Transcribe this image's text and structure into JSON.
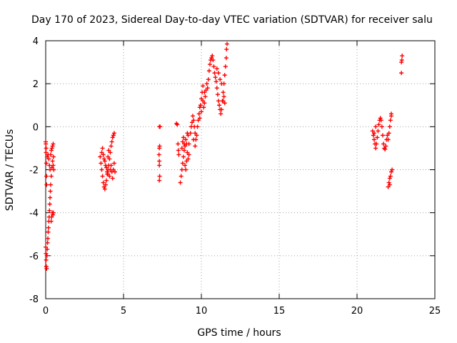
{
  "chart_data": {
    "type": "scatter",
    "title": "Day 170 of 2023, Sidereal Day-to-day VTEC variation (SDTVAR) for receiver salu",
    "xlabel": "GPS time / hours",
    "ylabel": "SDTVAR / TECUs",
    "xlim": [
      0,
      25
    ],
    "ylim": [
      -8,
      4
    ],
    "xticks": [
      0,
      5,
      10,
      15,
      20,
      25
    ],
    "yticks": [
      -8,
      -6,
      -4,
      -2,
      0,
      2,
      4
    ],
    "grid": true,
    "marker": "+",
    "color": "#ff0000",
    "series": [
      {
        "name": "SDTVAR",
        "points": [
          [
            0.0,
            -0.7
          ],
          [
            0.02,
            -1.2
          ],
          [
            0.04,
            -1.7
          ],
          [
            0.05,
            -2.3
          ],
          [
            0.06,
            -2.7
          ],
          [
            0.03,
            -1.0
          ],
          [
            0.01,
            -0.8
          ],
          [
            0.0,
            -5.6
          ],
          [
            0.02,
            -5.9
          ],
          [
            0.03,
            -6.2
          ],
          [
            0.04,
            -6.5
          ],
          [
            0.06,
            -6.6
          ],
          [
            0.08,
            -6.0
          ],
          [
            0.1,
            -5.7
          ],
          [
            0.12,
            -5.4
          ],
          [
            0.14,
            -5.2
          ],
          [
            0.16,
            -4.9
          ],
          [
            0.18,
            -4.7
          ],
          [
            0.2,
            -4.4
          ],
          [
            0.22,
            -4.2
          ],
          [
            0.24,
            -3.9
          ],
          [
            0.26,
            -3.6
          ],
          [
            0.28,
            -3.3
          ],
          [
            0.3,
            -3.0
          ],
          [
            0.32,
            -2.7
          ],
          [
            0.2,
            -1.5
          ],
          [
            0.24,
            -1.8
          ],
          [
            0.28,
            -2.0
          ],
          [
            0.32,
            -1.3
          ],
          [
            0.36,
            -1.1
          ],
          [
            0.4,
            -1.0
          ],
          [
            0.44,
            -0.9
          ],
          [
            0.48,
            -0.8
          ],
          [
            0.35,
            -4.4
          ],
          [
            0.38,
            -4.2
          ],
          [
            0.42,
            -4.0
          ],
          [
            0.46,
            -4.1
          ],
          [
            0.5,
            -4.0
          ],
          [
            0.36,
            -2.3
          ],
          [
            0.4,
            -1.9
          ],
          [
            0.44,
            -1.6
          ],
          [
            0.48,
            -1.8
          ],
          [
            0.52,
            -2.0
          ],
          [
            0.5,
            -1.4
          ],
          [
            0.15,
            -1.3
          ],
          [
            0.1,
            -1.4
          ],
          [
            3.5,
            -1.4
          ],
          [
            3.55,
            -1.7
          ],
          [
            3.6,
            -2.0
          ],
          [
            3.65,
            -2.3
          ],
          [
            3.7,
            -2.6
          ],
          [
            3.75,
            -2.8
          ],
          [
            3.8,
            -2.9
          ],
          [
            3.85,
            -2.7
          ],
          [
            3.9,
            -2.5
          ],
          [
            3.95,
            -2.2
          ],
          [
            4.0,
            -2.0
          ],
          [
            3.6,
            -1.2
          ],
          [
            3.65,
            -1.0
          ],
          [
            3.7,
            -1.3
          ],
          [
            3.75,
            -1.5
          ],
          [
            3.8,
            -1.6
          ],
          [
            3.85,
            -1.8
          ],
          [
            3.9,
            -1.9
          ],
          [
            3.95,
            -2.1
          ],
          [
            4.0,
            -2.2
          ],
          [
            4.05,
            -1.8
          ],
          [
            4.1,
            -1.5
          ],
          [
            4.15,
            -1.2
          ],
          [
            4.2,
            -0.9
          ],
          [
            4.25,
            -0.7
          ],
          [
            4.3,
            -0.5
          ],
          [
            4.35,
            -0.4
          ],
          [
            4.4,
            -0.3
          ],
          [
            4.1,
            -2.3
          ],
          [
            4.15,
            -2.0
          ],
          [
            4.2,
            -1.8
          ],
          [
            4.25,
            -2.1
          ],
          [
            4.3,
            -2.4
          ],
          [
            4.35,
            -2.0
          ],
          [
            4.4,
            -1.7
          ],
          [
            4.45,
            -2.1
          ],
          [
            4.05,
            -1.1
          ],
          [
            4.0,
            -1.4
          ],
          [
            7.3,
            -2.5
          ],
          [
            7.32,
            -2.3
          ],
          [
            7.3,
            -1.8
          ],
          [
            7.3,
            -1.6
          ],
          [
            7.28,
            -1.3
          ],
          [
            7.3,
            -1.0
          ],
          [
            7.32,
            -0.9
          ],
          [
            7.35,
            0.0
          ],
          [
            7.3,
            0.0
          ],
          [
            8.4,
            0.15
          ],
          [
            8.45,
            0.1
          ],
          [
            8.5,
            -0.8
          ],
          [
            8.52,
            -1.1
          ],
          [
            8.55,
            -1.3
          ],
          [
            8.65,
            -2.6
          ],
          [
            8.7,
            -2.3
          ],
          [
            8.75,
            -2.0
          ],
          [
            8.8,
            -1.7
          ],
          [
            8.85,
            -1.4
          ],
          [
            8.9,
            -1.1
          ],
          [
            8.95,
            -0.9
          ],
          [
            9.0,
            -0.6
          ],
          [
            9.05,
            -0.8
          ],
          [
            9.1,
            -1.2
          ],
          [
            9.15,
            -1.5
          ],
          [
            9.2,
            -1.3
          ],
          [
            8.75,
            -1.0
          ],
          [
            8.8,
            -0.7
          ],
          [
            8.85,
            -0.5
          ],
          [
            8.9,
            -0.8
          ],
          [
            8.95,
            -1.8
          ],
          [
            9.0,
            -2.0
          ],
          [
            9.05,
            -1.6
          ],
          [
            9.1,
            -0.3
          ],
          [
            9.15,
            -0.4
          ],
          [
            9.2,
            -0.8
          ],
          [
            9.3,
            -0.3
          ],
          [
            9.35,
            0.0
          ],
          [
            9.4,
            0.2
          ],
          [
            9.45,
            0.5
          ],
          [
            9.5,
            0.3
          ],
          [
            9.55,
            0.0
          ],
          [
            9.6,
            -0.3
          ],
          [
            9.65,
            -0.6
          ],
          [
            9.7,
            -0.4
          ],
          [
            9.75,
            0.0
          ],
          [
            9.8,
            0.3
          ],
          [
            9.85,
            0.6
          ],
          [
            9.9,
            0.9
          ],
          [
            9.95,
            1.0
          ],
          [
            10.0,
            1.3
          ],
          [
            10.05,
            1.6
          ],
          [
            10.1,
            1.2
          ],
          [
            10.15,
            0.9
          ],
          [
            10.2,
            1.1
          ],
          [
            10.25,
            1.4
          ],
          [
            10.3,
            1.7
          ],
          [
            10.35,
            2.0
          ],
          [
            10.4,
            1.8
          ],
          [
            10.45,
            2.2
          ],
          [
            10.5,
            2.6
          ],
          [
            10.55,
            2.9
          ],
          [
            10.6,
            3.1
          ],
          [
            10.65,
            3.2
          ],
          [
            10.7,
            3.3
          ],
          [
            10.75,
            3.1
          ],
          [
            10.8,
            2.8
          ],
          [
            10.85,
            2.5
          ],
          [
            10.9,
            2.3
          ],
          [
            10.95,
            2.1
          ],
          [
            11.0,
            1.8
          ],
          [
            11.05,
            1.5
          ],
          [
            11.1,
            1.2
          ],
          [
            11.15,
            1.0
          ],
          [
            11.2,
            0.8
          ],
          [
            11.25,
            0.6
          ],
          [
            11.3,
            0.8
          ],
          [
            11.35,
            1.2
          ],
          [
            11.4,
            1.6
          ],
          [
            11.45,
            2.0
          ],
          [
            11.5,
            2.4
          ],
          [
            11.55,
            2.8
          ],
          [
            11.6,
            3.2
          ],
          [
            11.62,
            3.6
          ],
          [
            11.65,
            3.85
          ],
          [
            11.4,
            1.2
          ],
          [
            11.45,
            1.4
          ],
          [
            11.5,
            1.1
          ],
          [
            11.3,
            2.0
          ],
          [
            11.2,
            2.2
          ],
          [
            11.1,
            2.5
          ],
          [
            11.0,
            2.7
          ],
          [
            9.9,
            0.4
          ],
          [
            10.0,
            0.7
          ],
          [
            10.1,
            1.9
          ],
          [
            10.2,
            1.6
          ],
          [
            9.6,
            -0.9
          ],
          [
            9.5,
            -0.6
          ],
          [
            21.0,
            -0.2
          ],
          [
            21.05,
            -0.4
          ],
          [
            21.1,
            -0.6
          ],
          [
            21.15,
            -0.8
          ],
          [
            21.2,
            -1.0
          ],
          [
            21.25,
            -0.8
          ],
          [
            21.3,
            -0.5
          ],
          [
            21.35,
            -0.2
          ],
          [
            21.4,
            0.1
          ],
          [
            21.45,
            0.3
          ],
          [
            21.5,
            0.4
          ],
          [
            21.55,
            0.3
          ],
          [
            21.6,
            0.0
          ],
          [
            21.65,
            -0.4
          ],
          [
            21.7,
            -0.8
          ],
          [
            21.75,
            -1.0
          ],
          [
            21.8,
            -1.05
          ],
          [
            21.85,
            -0.9
          ],
          [
            21.9,
            -0.6
          ],
          [
            21.95,
            -0.4
          ],
          [
            22.0,
            -0.6
          ],
          [
            22.05,
            -0.3
          ],
          [
            22.1,
            0.0
          ],
          [
            22.15,
            0.3
          ],
          [
            22.2,
            0.5
          ],
          [
            22.2,
            0.6
          ],
          [
            21.1,
            -0.3
          ],
          [
            21.2,
            0.0
          ],
          [
            22.0,
            -2.8
          ],
          [
            22.05,
            -2.6
          ],
          [
            22.1,
            -2.4
          ],
          [
            22.15,
            -2.3
          ],
          [
            22.2,
            -2.1
          ],
          [
            22.25,
            -2.0
          ],
          [
            22.1,
            -2.7
          ],
          [
            22.85,
            2.5
          ],
          [
            22.85,
            3.0
          ],
          [
            22.9,
            3.3
          ],
          [
            22.88,
            3.1
          ]
        ]
      }
    ]
  }
}
